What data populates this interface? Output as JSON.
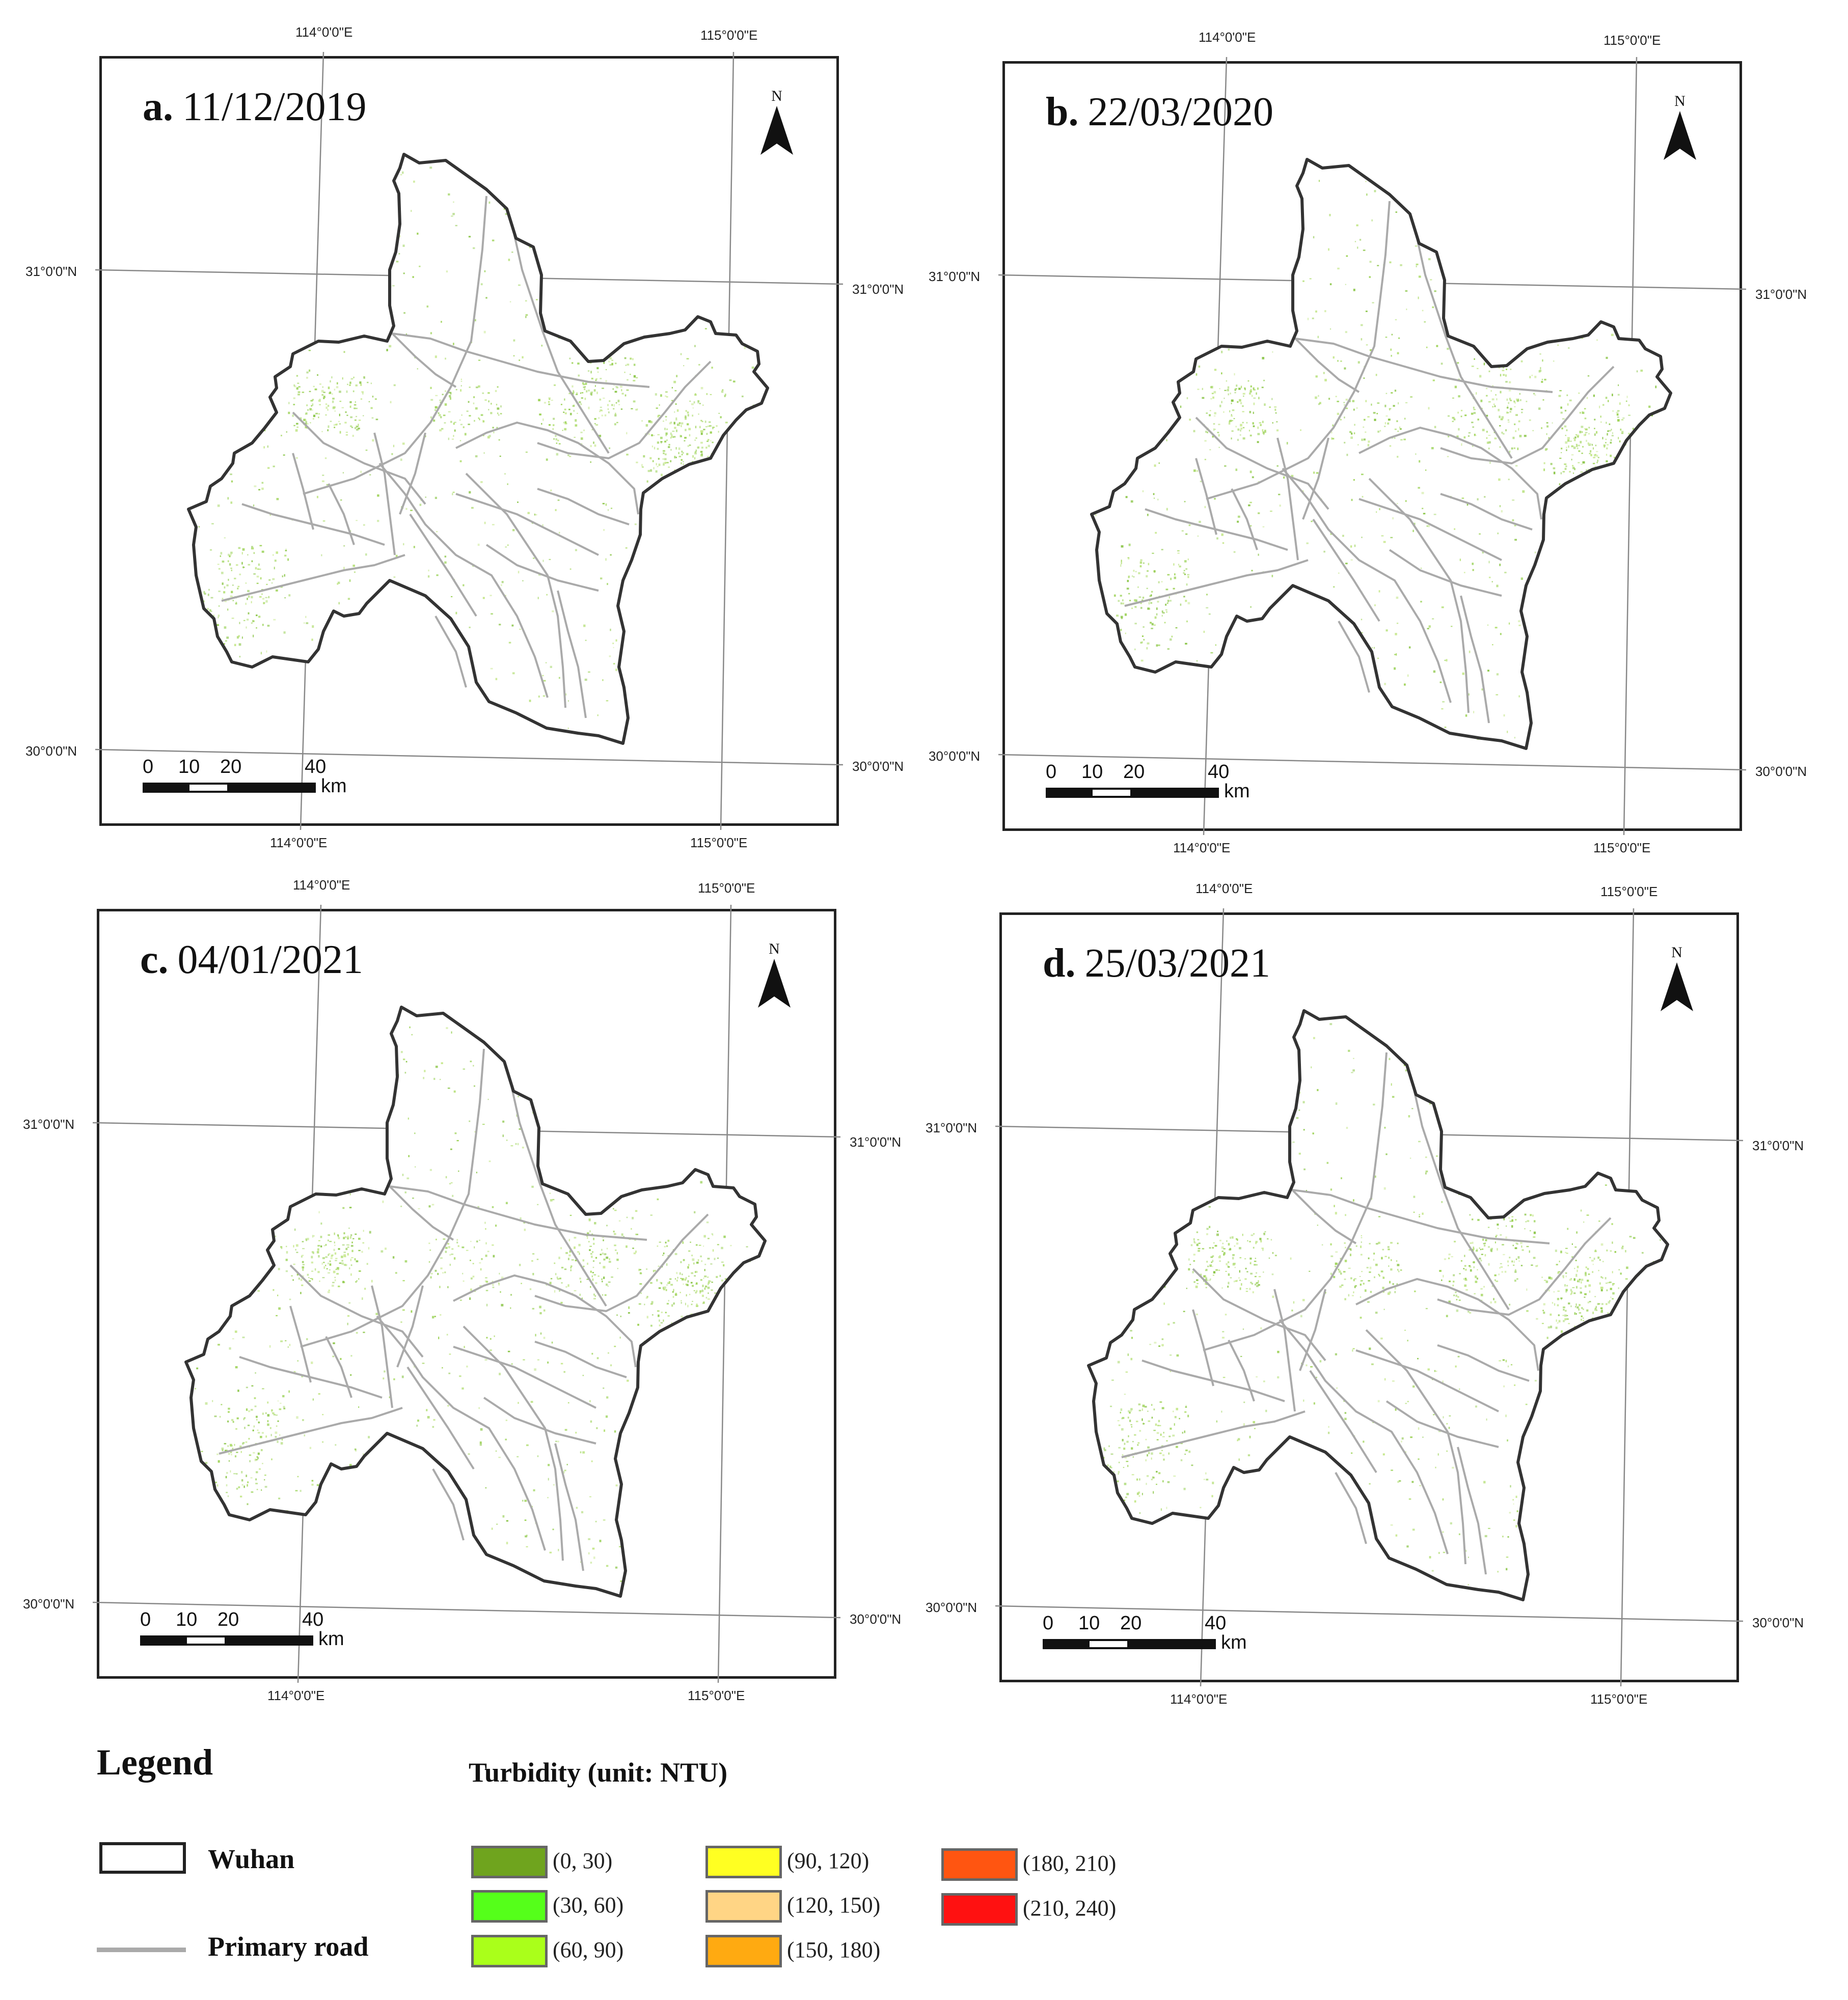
{
  "panels": [
    {
      "letter": "a.",
      "date": "11/12/2019",
      "lon_labels": [
        "114°0'0\"E",
        "115°0'0\"E"
      ],
      "lat_labels": [
        "31°0'0\"N",
        "30°0'0\"N"
      ]
    },
    {
      "letter": "b.",
      "date": "22/03/2020",
      "lon_labels": [
        "114°0'0\"E",
        "115°0'0\"E"
      ],
      "lat_labels": [
        "31°0'0\"N",
        "30°0'0\"N"
      ]
    },
    {
      "letter": "c.",
      "date": "04/01/2021",
      "lon_labels": [
        "114°0'0\"E",
        "115°0'0\"E"
      ],
      "lat_labels": [
        "31°0'0\"N",
        "30°0'0\"N"
      ]
    },
    {
      "letter": "d.",
      "date": "25/03/2021",
      "lon_labels": [
        "114°0'0\"E",
        "115°0'0\"E"
      ],
      "lat_labels": [
        "31°0'0\"N",
        "30°0'0\"N"
      ]
    }
  ],
  "north_arrow": {
    "label": "N"
  },
  "scale_bar": {
    "ticks": [
      "0",
      "10",
      "20",
      "40"
    ],
    "unit": "km"
  },
  "legend": {
    "title": "Legend",
    "boundary_label": "Wuhan",
    "road_label": "Primary road",
    "turbidity_title": "Turbidity (unit: NTU)",
    "classes": [
      {
        "label": "(0, 30)",
        "color": "#6fa41e"
      },
      {
        "label": "(30, 60)",
        "color": "#55ff1a"
      },
      {
        "label": "(60, 90)",
        "color": "#aaff1a"
      },
      {
        "label": "(90, 120)",
        "color": "#ffff22"
      },
      {
        "label": "(120, 150)",
        "color": "#ffd585"
      },
      {
        "label": "(150, 180)",
        "color": "#ffaa11"
      },
      {
        "label": "(180, 210)",
        "color": "#ff5511"
      },
      {
        "label": "(210, 240)",
        "color": "#ff1111"
      }
    ]
  },
  "colors": {
    "boundary": "#333333",
    "road": "#aaaaaa",
    "grid": "#888888"
  }
}
